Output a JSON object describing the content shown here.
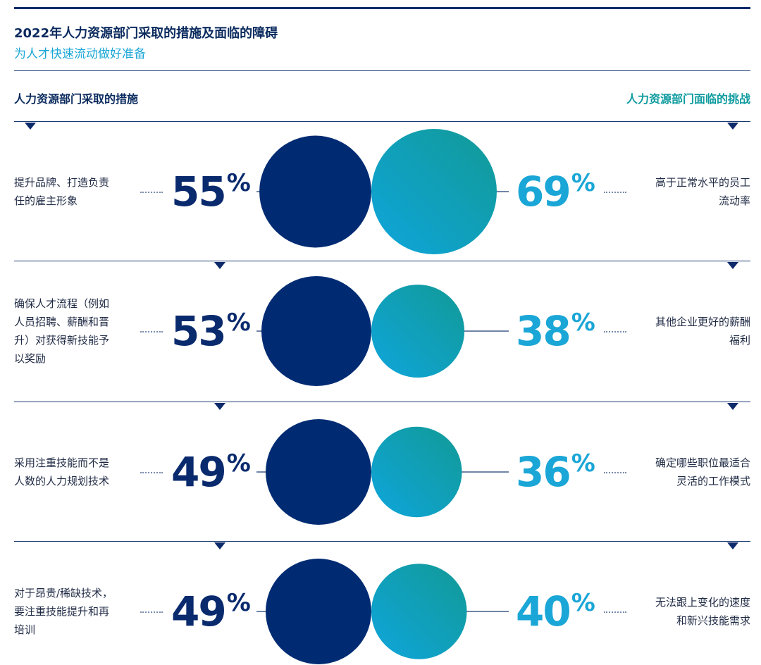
{
  "header": {
    "title": "2022年人力资源部门采取的措施及面临的障碍",
    "subtitle": "为人才快速流动做好准备"
  },
  "columns": {
    "left": "人力资源部门采取的措施",
    "right": "人力资源部门面临的挑战"
  },
  "colors": {
    "measure_circle": "#002b73",
    "challenge_gradient_start": "#0ea5dc",
    "challenge_gradient_end": "#129a96",
    "left_percent_text": "#0a2a6e",
    "right_percent_text": "#1aa6d6"
  },
  "chart_data": {
    "type": "bubble-pairs",
    "unit": "%",
    "rows": [
      {
        "measure": "提升品牌、打造负责任的雇主形象",
        "measure_lines": [
          "提升品牌、打造负责",
          "任的雇主形象"
        ],
        "measure_pct": 55,
        "measure_pct_label": "55",
        "challenge": "高于正常水平的员工流动率",
        "challenge_lines": [
          "高于正常水平的员工",
          "流动率"
        ],
        "challenge_pct": 69,
        "challenge_pct_label": "69"
      },
      {
        "measure": "确保人才流程（例如人员招聘、薪酬和晋升）对获得新技能予以奖励",
        "measure_lines": [
          "确保人才流程（例如",
          "人员招聘、薪酬和晋",
          "升）对获得新技能予",
          "以奖励"
        ],
        "measure_pct": 53,
        "measure_pct_label": "53",
        "challenge": "其他企业更好的薪酬福利",
        "challenge_lines": [
          "其他企业更好的薪酬",
          "福利"
        ],
        "challenge_pct": 38,
        "challenge_pct_label": "38"
      },
      {
        "measure": "采用注重技能而不是人数的人力规划技术",
        "measure_lines": [
          "采用注重技能而不是",
          "人数的人力规划技术"
        ],
        "measure_pct": 49,
        "measure_pct_label": "49",
        "challenge": "确定哪些职位最适合灵活的工作模式",
        "challenge_lines": [
          "确定哪些职位最适合",
          "灵活的工作模式"
        ],
        "challenge_pct": 36,
        "challenge_pct_label": "36"
      },
      {
        "measure": "对于昂贵/稀缺技术，要注重技能提升和再培训",
        "measure_lines": [
          "对于昂贵/稀缺技术，",
          "要注重技能提升和再",
          "培训"
        ],
        "measure_pct": 49,
        "measure_pct_label": "49",
        "challenge": "无法跟上变化的速度和新兴技能需求",
        "challenge_lines": [
          "无法跟上变化的速度",
          "和新兴技能需求"
        ],
        "challenge_pct": 40,
        "challenge_pct_label": "40"
      }
    ]
  }
}
